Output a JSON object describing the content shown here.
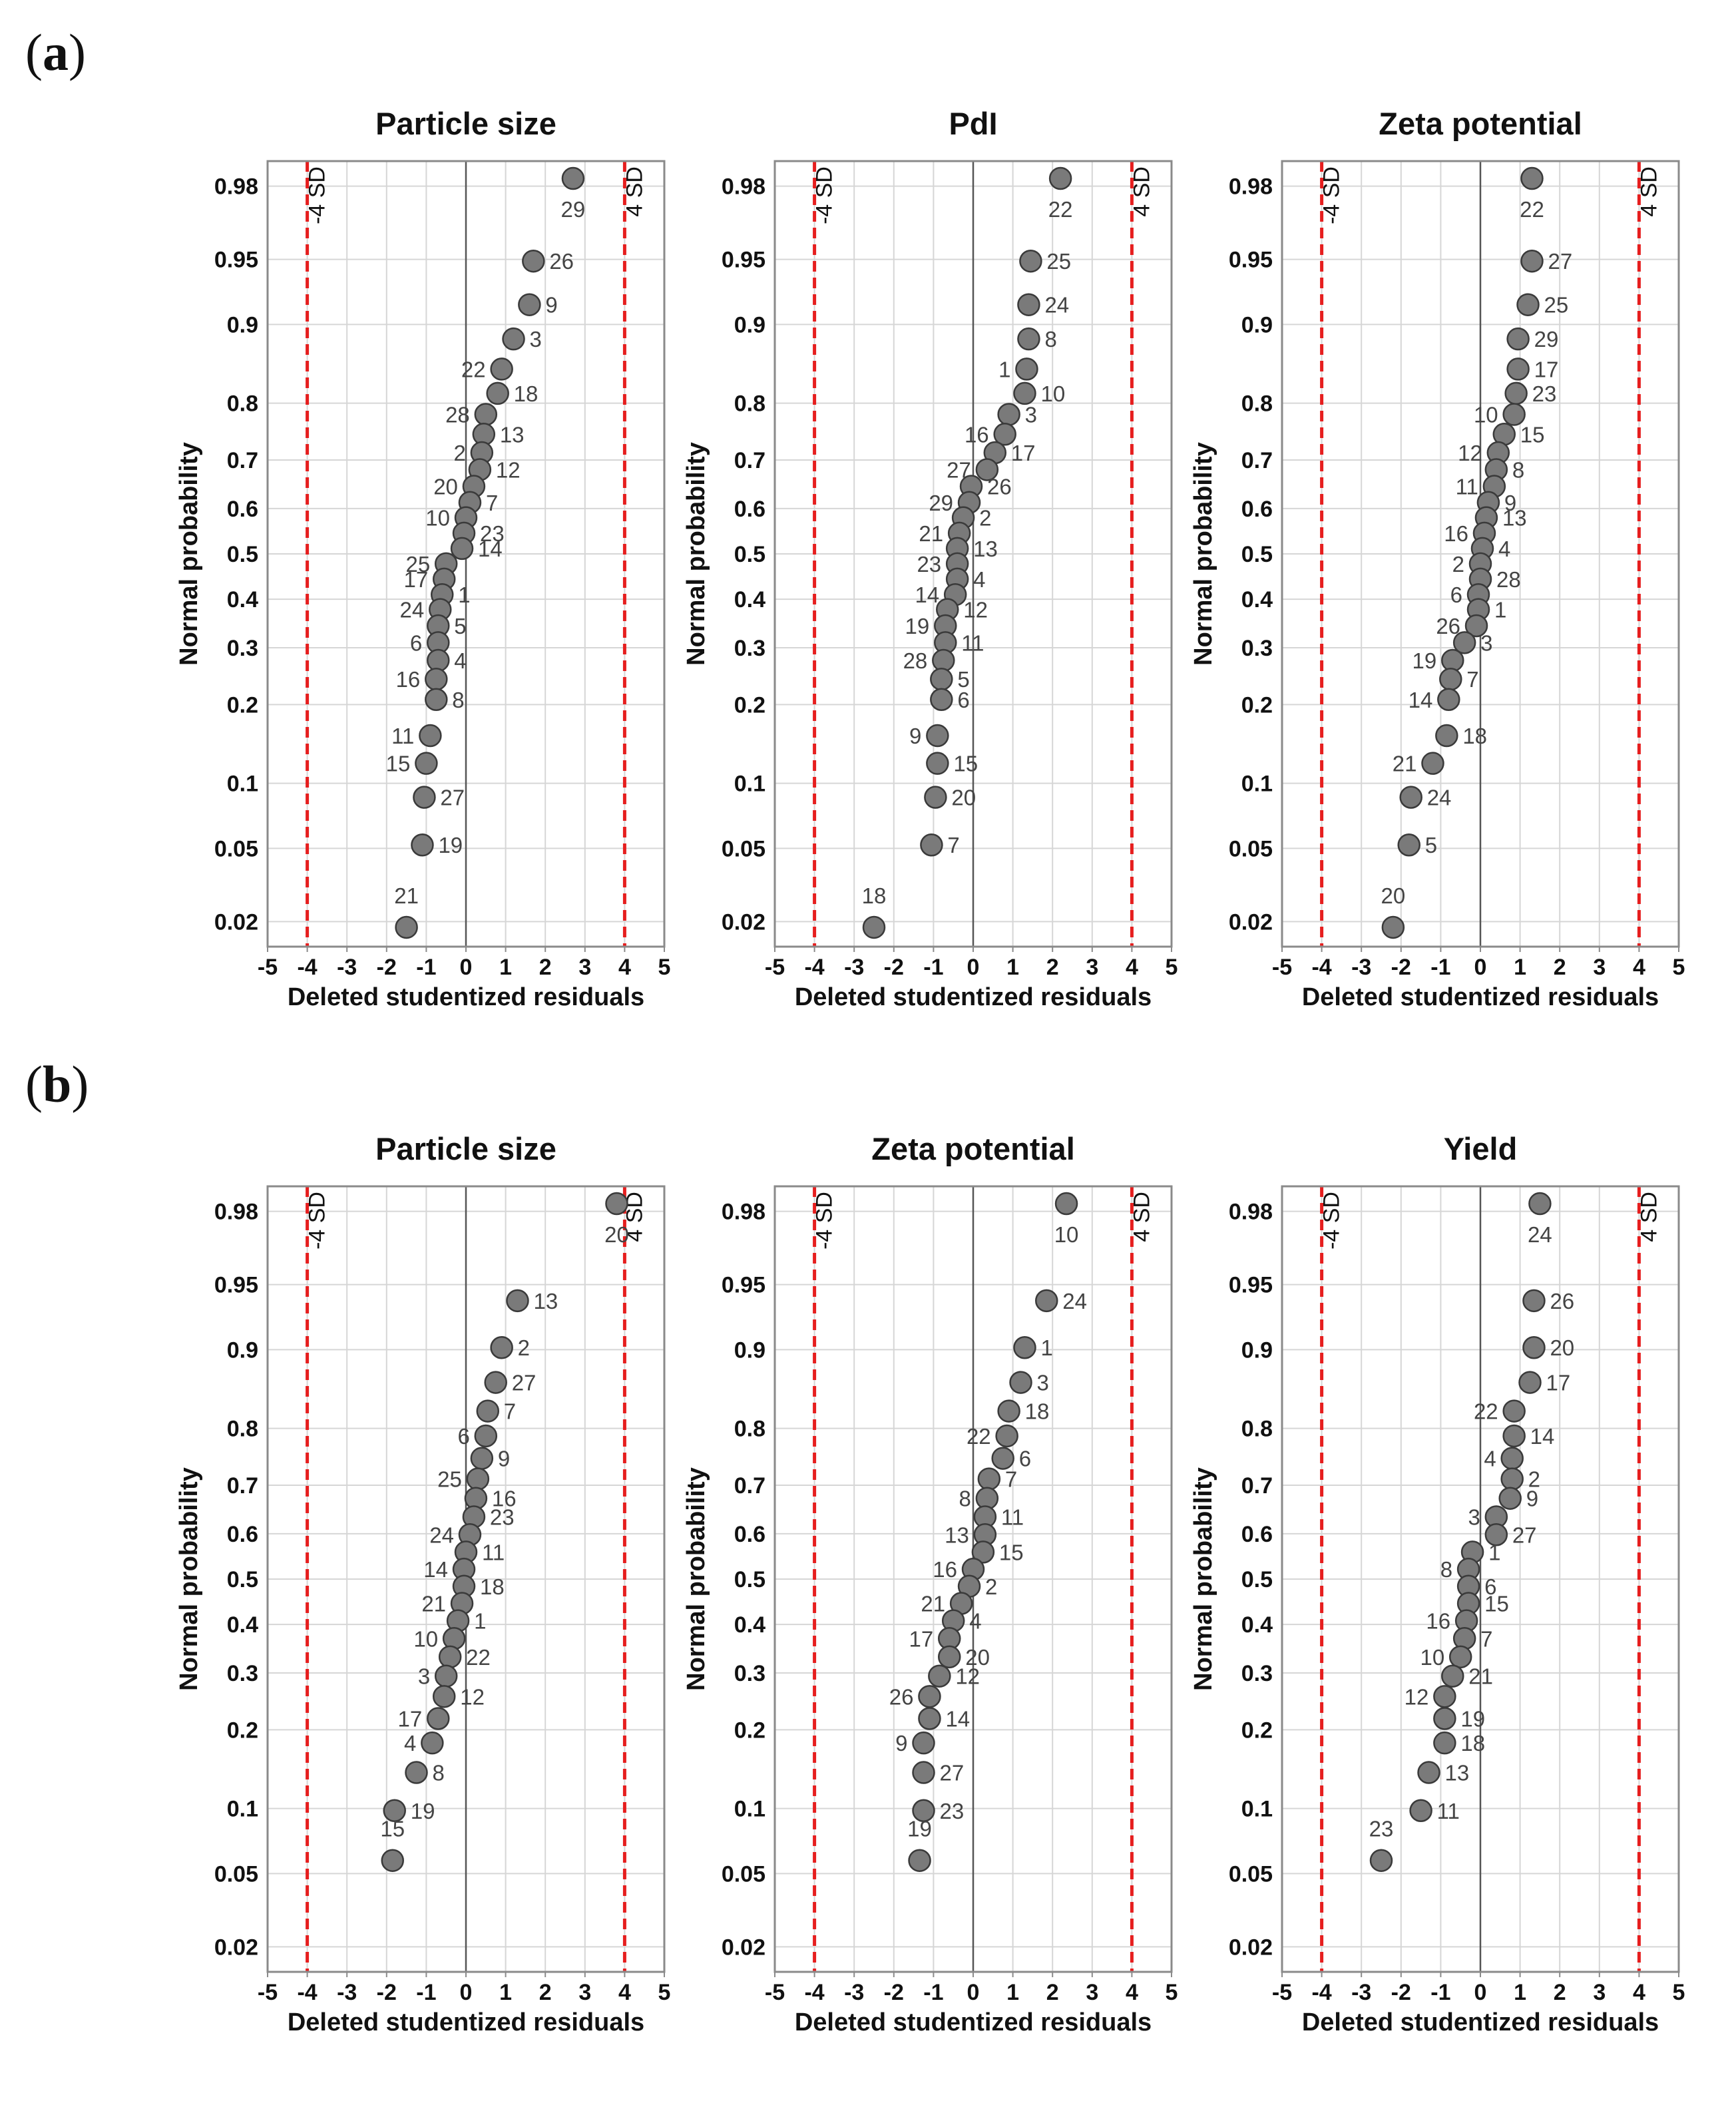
{
  "panels": [
    {
      "label_letter": "a"
    },
    {
      "label_letter": "b"
    }
  ],
  "chart_data": [
    {
      "type": "scatter",
      "panel": "a",
      "title": "Particle size",
      "xlabel": "Deleted studentized residuals",
      "ylabel": "Normal probability",
      "xlim": [
        -5,
        5
      ],
      "x_ticks": [
        -5,
        -4,
        -3,
        -2,
        -1,
        0,
        1,
        2,
        3,
        4,
        5
      ],
      "y_scale": "normal-probability",
      "y_ticks": [
        0.02,
        0.05,
        0.1,
        0.2,
        0.3,
        0.4,
        0.5,
        0.6,
        0.7,
        0.8,
        0.9,
        0.95,
        0.98
      ],
      "reference_lines": [
        {
          "x": -4,
          "label": "-4 SD"
        },
        {
          "x": 4,
          "label": "4 SD"
        }
      ],
      "points": [
        {
          "label": "29",
          "x": 2.7,
          "p": 0.982
        },
        {
          "label": "26",
          "x": 1.7,
          "p": 0.949
        },
        {
          "label": "9",
          "x": 1.6,
          "p": 0.918
        },
        {
          "label": "3",
          "x": 1.2,
          "p": 0.885
        },
        {
          "label": "22",
          "x": 0.9,
          "p": 0.849
        },
        {
          "label": "18",
          "x": 0.8,
          "p": 0.815
        },
        {
          "label": "28",
          "x": 0.5,
          "p": 0.782
        },
        {
          "label": "13",
          "x": 0.45,
          "p": 0.748
        },
        {
          "label": "2",
          "x": 0.4,
          "p": 0.714
        },
        {
          "label": "12",
          "x": 0.35,
          "p": 0.681
        },
        {
          "label": "20",
          "x": 0.2,
          "p": 0.647
        },
        {
          "label": "7",
          "x": 0.1,
          "p": 0.613
        },
        {
          "label": "10",
          "x": 0.0,
          "p": 0.58
        },
        {
          "label": "23",
          "x": -0.05,
          "p": 0.546
        },
        {
          "label": "14",
          "x": -0.1,
          "p": 0.512
        },
        {
          "label": "25",
          "x": -0.5,
          "p": 0.478
        },
        {
          "label": "17",
          "x": -0.55,
          "p": 0.444
        },
        {
          "label": "1",
          "x": -0.6,
          "p": 0.41
        },
        {
          "label": "24",
          "x": -0.65,
          "p": 0.378
        },
        {
          "label": "5",
          "x": -0.7,
          "p": 0.344
        },
        {
          "label": "6",
          "x": -0.7,
          "p": 0.31
        },
        {
          "label": "4",
          "x": -0.7,
          "p": 0.276
        },
        {
          "label": "16",
          "x": -0.75,
          "p": 0.242
        },
        {
          "label": "8",
          "x": -0.75,
          "p": 0.208
        },
        {
          "label": "11",
          "x": -0.9,
          "p": 0.155
        },
        {
          "label": "15",
          "x": -1.0,
          "p": 0.121
        },
        {
          "label": "27",
          "x": -1.05,
          "p": 0.087
        },
        {
          "label": "19",
          "x": -1.1,
          "p": 0.052
        },
        {
          "label": "21",
          "x": -1.5,
          "p": 0.0185
        }
      ]
    },
    {
      "type": "scatter",
      "panel": "a",
      "title": "PdI",
      "xlabel": "Deleted studentized residuals",
      "ylabel": "Normal probability",
      "xlim": [
        -5,
        5
      ],
      "x_ticks": [
        -5,
        -4,
        -3,
        -2,
        -1,
        0,
        1,
        2,
        3,
        4,
        5
      ],
      "y_scale": "normal-probability",
      "y_ticks": [
        0.02,
        0.05,
        0.1,
        0.2,
        0.3,
        0.4,
        0.5,
        0.6,
        0.7,
        0.8,
        0.9,
        0.95,
        0.98
      ],
      "reference_lines": [
        {
          "x": -4,
          "label": "-4 SD"
        },
        {
          "x": 4,
          "label": "4 SD"
        }
      ],
      "points": [
        {
          "label": "22",
          "x": 2.2,
          "p": 0.982
        },
        {
          "label": "25",
          "x": 1.45,
          "p": 0.949
        },
        {
          "label": "24",
          "x": 1.4,
          "p": 0.918
        },
        {
          "label": "8",
          "x": 1.4,
          "p": 0.885
        },
        {
          "label": "1",
          "x": 1.35,
          "p": 0.849
        },
        {
          "label": "10",
          "x": 1.3,
          "p": 0.815
        },
        {
          "label": "3",
          "x": 0.9,
          "p": 0.782
        },
        {
          "label": "16",
          "x": 0.8,
          "p": 0.748
        },
        {
          "label": "17",
          "x": 0.55,
          "p": 0.714
        },
        {
          "label": "27",
          "x": 0.35,
          "p": 0.681
        },
        {
          "label": "26",
          "x": -0.05,
          "p": 0.647
        },
        {
          "label": "29",
          "x": -0.1,
          "p": 0.613
        },
        {
          "label": "2",
          "x": -0.25,
          "p": 0.58
        },
        {
          "label": "21",
          "x": -0.35,
          "p": 0.546
        },
        {
          "label": "13",
          "x": -0.4,
          "p": 0.512
        },
        {
          "label": "23",
          "x": -0.4,
          "p": 0.478
        },
        {
          "label": "4",
          "x": -0.4,
          "p": 0.444
        },
        {
          "label": "14",
          "x": -0.45,
          "p": 0.41
        },
        {
          "label": "12",
          "x": -0.65,
          "p": 0.378
        },
        {
          "label": "19",
          "x": -0.7,
          "p": 0.344
        },
        {
          "label": "11",
          "x": -0.7,
          "p": 0.31
        },
        {
          "label": "28",
          "x": -0.75,
          "p": 0.276
        },
        {
          "label": "5",
          "x": -0.8,
          "p": 0.242
        },
        {
          "label": "6",
          "x": -0.8,
          "p": 0.208
        },
        {
          "label": "9",
          "x": -0.9,
          "p": 0.155
        },
        {
          "label": "15",
          "x": -0.9,
          "p": 0.121
        },
        {
          "label": "20",
          "x": -0.95,
          "p": 0.087
        },
        {
          "label": "7",
          "x": -1.05,
          "p": 0.052
        },
        {
          "label": "18",
          "x": -2.5,
          "p": 0.0185
        }
      ]
    },
    {
      "type": "scatter",
      "panel": "a",
      "title": "Zeta potential",
      "xlabel": "Deleted studentized residuals",
      "ylabel": "Normal probability",
      "xlim": [
        -5,
        5
      ],
      "x_ticks": [
        -5,
        -4,
        -3,
        -2,
        -1,
        0,
        1,
        2,
        3,
        4,
        5
      ],
      "y_scale": "normal-probability",
      "y_ticks": [
        0.02,
        0.05,
        0.1,
        0.2,
        0.3,
        0.4,
        0.5,
        0.6,
        0.7,
        0.8,
        0.9,
        0.95,
        0.98
      ],
      "reference_lines": [
        {
          "x": -4,
          "label": "-4 SD"
        },
        {
          "x": 4,
          "label": "4 SD"
        }
      ],
      "points": [
        {
          "label": "22",
          "x": 1.3,
          "p": 0.982
        },
        {
          "label": "27",
          "x": 1.3,
          "p": 0.949
        },
        {
          "label": "25",
          "x": 1.2,
          "p": 0.918
        },
        {
          "label": "29",
          "x": 0.95,
          "p": 0.885
        },
        {
          "label": "17",
          "x": 0.95,
          "p": 0.849
        },
        {
          "label": "23",
          "x": 0.9,
          "p": 0.815
        },
        {
          "label": "10",
          "x": 0.85,
          "p": 0.782
        },
        {
          "label": "15",
          "x": 0.6,
          "p": 0.748
        },
        {
          "label": "12",
          "x": 0.45,
          "p": 0.714
        },
        {
          "label": "8",
          "x": 0.4,
          "p": 0.681
        },
        {
          "label": "11",
          "x": 0.35,
          "p": 0.647
        },
        {
          "label": "9",
          "x": 0.2,
          "p": 0.613
        },
        {
          "label": "13",
          "x": 0.15,
          "p": 0.58
        },
        {
          "label": "16",
          "x": 0.1,
          "p": 0.546
        },
        {
          "label": "4",
          "x": 0.05,
          "p": 0.512
        },
        {
          "label": "2",
          "x": 0.0,
          "p": 0.478
        },
        {
          "label": "28",
          "x": 0.0,
          "p": 0.444
        },
        {
          "label": "6",
          "x": -0.05,
          "p": 0.41
        },
        {
          "label": "1",
          "x": -0.05,
          "p": 0.378
        },
        {
          "label": "26",
          "x": -0.1,
          "p": 0.344
        },
        {
          "label": "3",
          "x": -0.4,
          "p": 0.31
        },
        {
          "label": "19",
          "x": -0.7,
          "p": 0.276
        },
        {
          "label": "7",
          "x": -0.75,
          "p": 0.242
        },
        {
          "label": "14",
          "x": -0.8,
          "p": 0.208
        },
        {
          "label": "18",
          "x": -0.85,
          "p": 0.155
        },
        {
          "label": "21",
          "x": -1.2,
          "p": 0.121
        },
        {
          "label": "24",
          "x": -1.75,
          "p": 0.087
        },
        {
          "label": "5",
          "x": -1.8,
          "p": 0.052
        },
        {
          "label": "20",
          "x": -2.2,
          "p": 0.0185
        }
      ]
    },
    {
      "type": "scatter",
      "panel": "b",
      "title": "Particle size",
      "xlabel": "Deleted studentized residuals",
      "ylabel": "Normal probability",
      "xlim": [
        -5,
        5
      ],
      "x_ticks": [
        -5,
        -4,
        -3,
        -2,
        -1,
        0,
        1,
        2,
        3,
        4,
        5
      ],
      "y_scale": "normal-probability",
      "y_ticks": [
        0.02,
        0.05,
        0.1,
        0.2,
        0.3,
        0.4,
        0.5,
        0.6,
        0.7,
        0.8,
        0.9,
        0.95,
        0.98
      ],
      "reference_lines": [
        {
          "x": -4,
          "label": "-4 SD"
        },
        {
          "x": 4,
          "label": "4 SD"
        }
      ],
      "points": [
        {
          "label": "20",
          "x": 3.8,
          "p": 0.982
        },
        {
          "label": "13",
          "x": 1.3,
          "p": 0.94
        },
        {
          "label": "2",
          "x": 0.9,
          "p": 0.902
        },
        {
          "label": "27",
          "x": 0.75,
          "p": 0.864
        },
        {
          "label": "7",
          "x": 0.55,
          "p": 0.826
        },
        {
          "label": "6",
          "x": 0.5,
          "p": 0.788
        },
        {
          "label": "9",
          "x": 0.4,
          "p": 0.75
        },
        {
          "label": "25",
          "x": 0.3,
          "p": 0.712
        },
        {
          "label": "16",
          "x": 0.25,
          "p": 0.674
        },
        {
          "label": "23",
          "x": 0.2,
          "p": 0.636
        },
        {
          "label": "24",
          "x": 0.1,
          "p": 0.598
        },
        {
          "label": "11",
          "x": 0.0,
          "p": 0.56
        },
        {
          "label": "14",
          "x": -0.05,
          "p": 0.522
        },
        {
          "label": "18",
          "x": -0.05,
          "p": 0.484
        },
        {
          "label": "21",
          "x": -0.1,
          "p": 0.446
        },
        {
          "label": "1",
          "x": -0.2,
          "p": 0.408
        },
        {
          "label": "10",
          "x": -0.3,
          "p": 0.37
        },
        {
          "label": "22",
          "x": -0.4,
          "p": 0.332
        },
        {
          "label": "3",
          "x": -0.5,
          "p": 0.294
        },
        {
          "label": "12",
          "x": -0.55,
          "p": 0.256
        },
        {
          "label": "17",
          "x": -0.7,
          "p": 0.218
        },
        {
          "label": "4",
          "x": -0.85,
          "p": 0.18
        },
        {
          "label": "8",
          "x": -1.25,
          "p": 0.14
        },
        {
          "label": "19",
          "x": -1.8,
          "p": 0.098
        },
        {
          "label": "15",
          "x": -1.85,
          "p": 0.058
        }
      ]
    },
    {
      "type": "scatter",
      "panel": "b",
      "title": "Zeta potential",
      "xlabel": "Deleted studentized residuals",
      "ylabel": "Normal probability",
      "xlim": [
        -5,
        5
      ],
      "x_ticks": [
        -5,
        -4,
        -3,
        -2,
        -1,
        0,
        1,
        2,
        3,
        4,
        5
      ],
      "y_scale": "normal-probability",
      "y_ticks": [
        0.02,
        0.05,
        0.1,
        0.2,
        0.3,
        0.4,
        0.5,
        0.6,
        0.7,
        0.8,
        0.9,
        0.95,
        0.98
      ],
      "reference_lines": [
        {
          "x": -4,
          "label": "-4 SD"
        },
        {
          "x": 4,
          "label": "4 SD"
        }
      ],
      "points": [
        {
          "label": "10",
          "x": 2.35,
          "p": 0.982
        },
        {
          "label": "24",
          "x": 1.85,
          "p": 0.94
        },
        {
          "label": "1",
          "x": 1.3,
          "p": 0.902
        },
        {
          "label": "3",
          "x": 1.2,
          "p": 0.864
        },
        {
          "label": "18",
          "x": 0.9,
          "p": 0.826
        },
        {
          "label": "22",
          "x": 0.85,
          "p": 0.788
        },
        {
          "label": "6",
          "x": 0.75,
          "p": 0.75
        },
        {
          "label": "7",
          "x": 0.4,
          "p": 0.712
        },
        {
          "label": "8",
          "x": 0.35,
          "p": 0.674
        },
        {
          "label": "11",
          "x": 0.3,
          "p": 0.636
        },
        {
          "label": "13",
          "x": 0.3,
          "p": 0.598
        },
        {
          "label": "15",
          "x": 0.25,
          "p": 0.56
        },
        {
          "label": "16",
          "x": 0.0,
          "p": 0.522
        },
        {
          "label": "2",
          "x": -0.1,
          "p": 0.484
        },
        {
          "label": "21",
          "x": -0.3,
          "p": 0.446
        },
        {
          "label": "4",
          "x": -0.5,
          "p": 0.408
        },
        {
          "label": "17",
          "x": -0.6,
          "p": 0.37
        },
        {
          "label": "20",
          "x": -0.6,
          "p": 0.332
        },
        {
          "label": "12",
          "x": -0.85,
          "p": 0.294
        },
        {
          "label": "26",
          "x": -1.1,
          "p": 0.256
        },
        {
          "label": "14",
          "x": -1.1,
          "p": 0.218
        },
        {
          "label": "9",
          "x": -1.25,
          "p": 0.18
        },
        {
          "label": "27",
          "x": -1.25,
          "p": 0.14
        },
        {
          "label": "23",
          "x": -1.25,
          "p": 0.098
        },
        {
          "label": "19",
          "x": -1.35,
          "p": 0.058
        }
      ]
    },
    {
      "type": "scatter",
      "panel": "b",
      "title": "Yield",
      "xlabel": "Deleted studentized residuals",
      "ylabel": "Normal probability",
      "xlim": [
        -5,
        5
      ],
      "x_ticks": [
        -5,
        -4,
        -3,
        -2,
        -1,
        0,
        1,
        2,
        3,
        4,
        5
      ],
      "y_scale": "normal-probability",
      "y_ticks": [
        0.02,
        0.05,
        0.1,
        0.2,
        0.3,
        0.4,
        0.5,
        0.6,
        0.7,
        0.8,
        0.9,
        0.95,
        0.98
      ],
      "reference_lines": [
        {
          "x": -4,
          "label": "-4 SD"
        },
        {
          "x": 4,
          "label": "4 SD"
        }
      ],
      "points": [
        {
          "label": "24",
          "x": 1.5,
          "p": 0.982
        },
        {
          "label": "26",
          "x": 1.35,
          "p": 0.94
        },
        {
          "label": "20",
          "x": 1.35,
          "p": 0.902
        },
        {
          "label": "17",
          "x": 1.25,
          "p": 0.864
        },
        {
          "label": "22",
          "x": 0.85,
          "p": 0.826
        },
        {
          "label": "14",
          "x": 0.85,
          "p": 0.788
        },
        {
          "label": "4",
          "x": 0.8,
          "p": 0.75
        },
        {
          "label": "2",
          "x": 0.8,
          "p": 0.712
        },
        {
          "label": "9",
          "x": 0.75,
          "p": 0.674
        },
        {
          "label": "3",
          "x": 0.4,
          "p": 0.636
        },
        {
          "label": "27",
          "x": 0.4,
          "p": 0.598
        },
        {
          "label": "1",
          "x": -0.2,
          "p": 0.56
        },
        {
          "label": "8",
          "x": -0.3,
          "p": 0.522
        },
        {
          "label": "6",
          "x": -0.3,
          "p": 0.484
        },
        {
          "label": "15",
          "x": -0.3,
          "p": 0.446
        },
        {
          "label": "16",
          "x": -0.35,
          "p": 0.408
        },
        {
          "label": "7",
          "x": -0.4,
          "p": 0.37
        },
        {
          "label": "10",
          "x": -0.5,
          "p": 0.332
        },
        {
          "label": "21",
          "x": -0.7,
          "p": 0.294
        },
        {
          "label": "12",
          "x": -0.9,
          "p": 0.256
        },
        {
          "label": "19",
          "x": -0.9,
          "p": 0.218
        },
        {
          "label": "18",
          "x": -0.9,
          "p": 0.18
        },
        {
          "label": "13",
          "x": -1.3,
          "p": 0.14
        },
        {
          "label": "11",
          "x": -1.5,
          "p": 0.098
        },
        {
          "label": "23",
          "x": -2.5,
          "p": 0.058
        }
      ]
    }
  ]
}
